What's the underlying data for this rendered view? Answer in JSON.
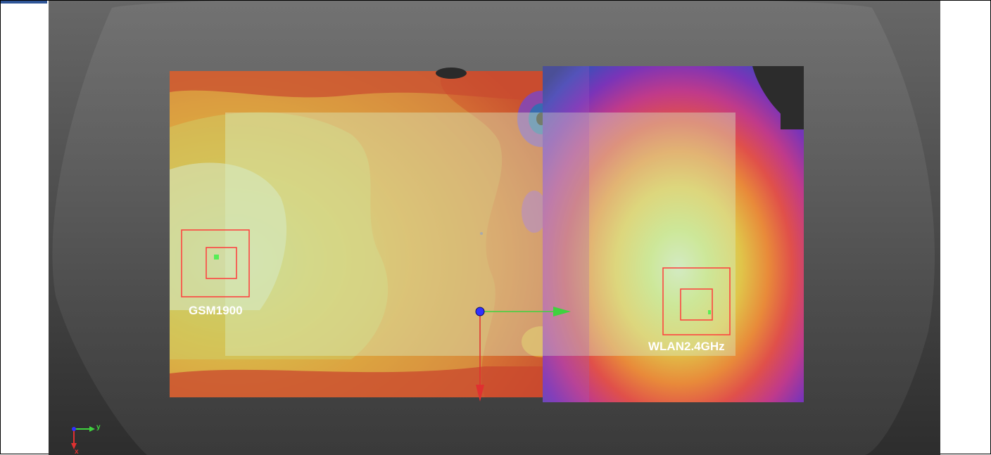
{
  "viewer": {
    "antennas": [
      {
        "name": "GSM1900"
      },
      {
        "name": "WLAN2.4GHz"
      }
    ],
    "orientation_axes": {
      "y_label": "y",
      "x_label": "x"
    },
    "colors": {
      "background_top": "#666666",
      "background_bottom": "#2e2e2e",
      "outline_shape": "#7a7a7a",
      "device_overlay": "#d8efc4",
      "antenna_box": "#ff3b3b",
      "axis_x": "#e03030",
      "axis_y": "#3fd23f",
      "axis_origin": "#3030ff"
    }
  }
}
